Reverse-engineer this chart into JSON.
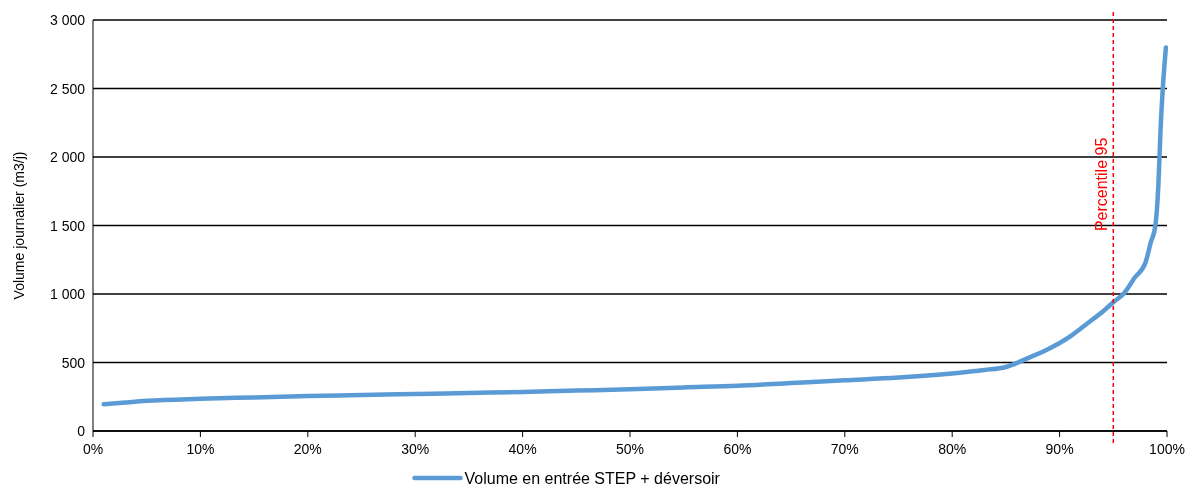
{
  "chart_data": {
    "type": "line",
    "ylabel": "Volume journalier  (m3/j)",
    "x": [
      1,
      3,
      5,
      10,
      15,
      20,
      25,
      30,
      35,
      40,
      45,
      50,
      55,
      60,
      65,
      70,
      75,
      80,
      83,
      85,
      87,
      89,
      90,
      91,
      92,
      93,
      94,
      95,
      96,
      97,
      98,
      98.5,
      98.9,
      99.2,
      99.4,
      99.6,
      99.9
    ],
    "series": [
      {
        "name": "Volume en entrée STEP + déversoir",
        "color": "#5b9bd5",
        "values": [
          195,
          208,
          220,
          235,
          245,
          255,
          262,
          270,
          278,
          285,
          295,
          305,
          318,
          330,
          350,
          370,
          390,
          420,
          445,
          467,
          530,
          600,
          642,
          690,
          750,
          810,
          870,
          940,
          1005,
          1120,
          1230,
          1380,
          1490,
          1800,
          2200,
          2490,
          2800
        ]
      }
    ],
    "xlim": [
      0,
      100
    ],
    "xticks": [
      {
        "value": 0,
        "label": "0%"
      },
      {
        "value": 10,
        "label": "10%"
      },
      {
        "value": 20,
        "label": "20%"
      },
      {
        "value": 30,
        "label": "30%"
      },
      {
        "value": 40,
        "label": "40%"
      },
      {
        "value": 50,
        "label": "50%"
      },
      {
        "value": 60,
        "label": "60%"
      },
      {
        "value": 70,
        "label": "70%"
      },
      {
        "value": 80,
        "label": "80%"
      },
      {
        "value": 90,
        "label": "90%"
      },
      {
        "value": 100,
        "label": "100%"
      }
    ],
    "ylim": [
      0,
      3000
    ],
    "yticks": [
      0,
      500,
      {
        "value": 1000,
        "label": "1 000"
      },
      {
        "value": 1500,
        "label": "1 500"
      },
      {
        "value": 2000,
        "label": "2 000"
      },
      {
        "value": 2500,
        "label": "2 500"
      },
      {
        "value": 3000,
        "label": "3 000"
      }
    ],
    "grid": "y",
    "legend": "bottom",
    "marker": "none",
    "line_style": "solid",
    "ref_lines": [
      {
        "axis": "x",
        "value": 95,
        "label": "Percentile 95",
        "color": "#ff0000",
        "line_style": "dashed"
      }
    ]
  }
}
